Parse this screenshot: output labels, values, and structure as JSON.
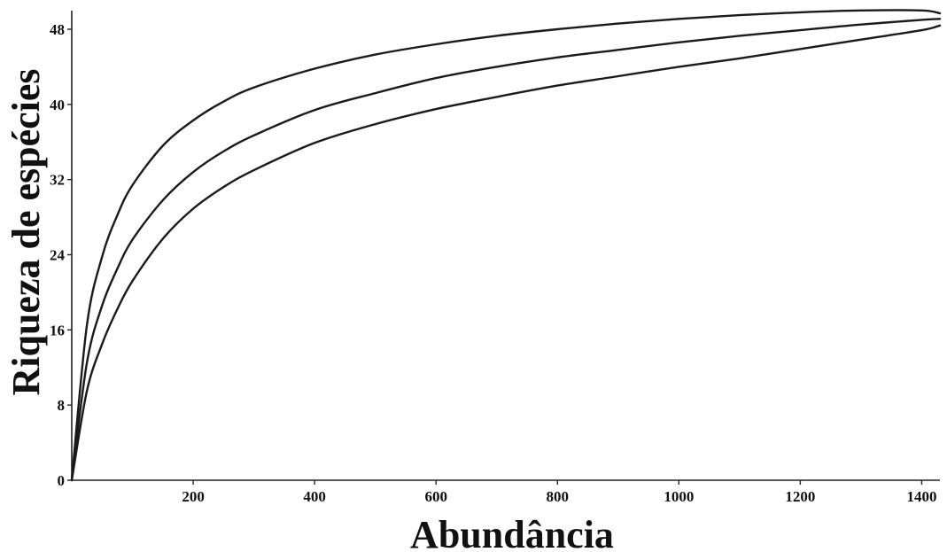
{
  "chart_data": {
    "type": "line",
    "xlabel": "Abundância",
    "ylabel": "Riqueza de espécies",
    "xlim": [
      0,
      1430
    ],
    "ylim": [
      0,
      50
    ],
    "x_ticks": [
      200,
      400,
      600,
      800,
      1000,
      1200,
      1400
    ],
    "y_ticks": [
      0,
      8,
      16,
      24,
      32,
      40,
      48
    ],
    "grid": false,
    "legend": "none",
    "series": [
      {
        "x": [
          0,
          25,
          50,
          75,
          100,
          150,
          200,
          250,
          300,
          400,
          500,
          600,
          700,
          800,
          900,
          1000,
          1100,
          1200,
          1300,
          1400,
          1430
        ],
        "values": [
          0,
          16.5,
          23.8,
          28.2,
          31.4,
          35.6,
          38.3,
          40.3,
          41.8,
          43.8,
          45.3,
          46.4,
          47.3,
          48.0,
          48.6,
          49.1,
          49.5,
          49.8,
          50.0,
          50.0,
          49.7
        ]
      },
      {
        "x": [
          0,
          25,
          50,
          75,
          100,
          150,
          200,
          250,
          300,
          400,
          500,
          600,
          700,
          800,
          900,
          1000,
          1100,
          1200,
          1300,
          1400,
          1430
        ],
        "values": [
          0,
          12.5,
          18.6,
          22.5,
          25.6,
          29.8,
          32.8,
          35.0,
          36.7,
          39.4,
          41.2,
          42.8,
          44.0,
          45.0,
          45.8,
          46.6,
          47.3,
          47.9,
          48.5,
          49.0,
          49.1
        ]
      },
      {
        "x": [
          0,
          25,
          50,
          75,
          100,
          150,
          200,
          250,
          300,
          400,
          500,
          600,
          700,
          800,
          900,
          1000,
          1100,
          1200,
          1300,
          1400,
          1430
        ],
        "values": [
          0,
          9.5,
          14.5,
          18.2,
          21.2,
          25.7,
          28.9,
          31.2,
          33.0,
          35.9,
          37.9,
          39.5,
          40.8,
          42.0,
          43.0,
          44.0,
          44.9,
          45.9,
          46.9,
          47.9,
          48.4
        ]
      }
    ]
  }
}
